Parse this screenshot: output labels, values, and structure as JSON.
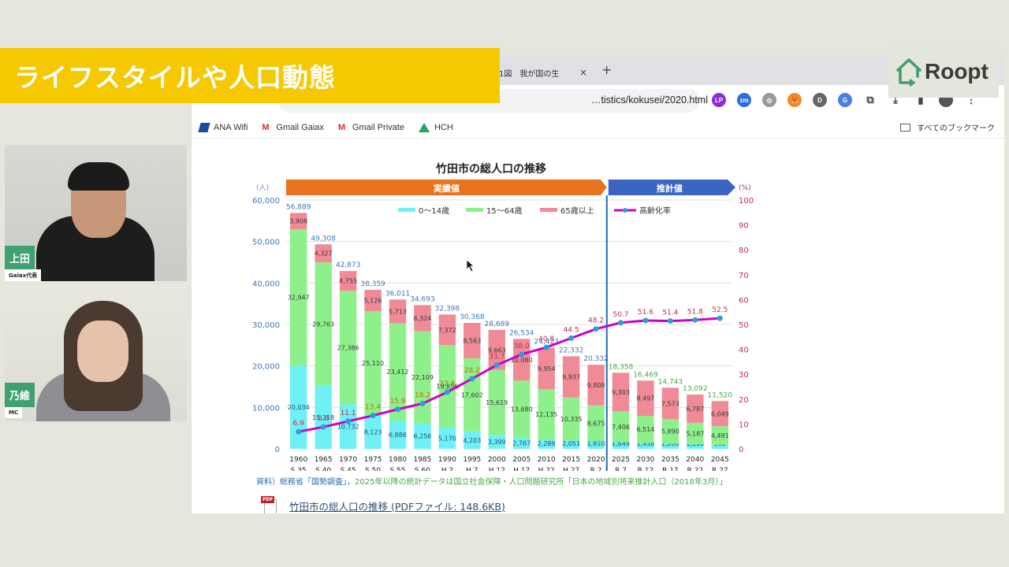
{
  "overlay": {
    "banner_title": "ライフスタイルや人口動態",
    "logo_text": "Roopt"
  },
  "participants": [
    {
      "name": "上田",
      "role": "Gaiax代表"
    },
    {
      "name": "乃維",
      "role": "MC"
    }
  ],
  "browser": {
    "tab_title": "ー1図　我が国の生",
    "tab_close": "×",
    "new_tab": "+",
    "url": "…tistics/kokusei/2020.html",
    "bookmarks": [
      {
        "label": "ANA Wifi",
        "icon": "ana-icon"
      },
      {
        "label": "Gmail Gaiax",
        "icon": "gmail-icon"
      },
      {
        "label": "Gmail Private",
        "icon": "gmail-icon"
      },
      {
        "label": "HCH",
        "icon": "drive-icon"
      }
    ],
    "all_bookmarks": "すべてのブックマーク",
    "extensions": [
      {
        "name": "lastpass-extension",
        "label": "LP",
        "color": "#8a2be2"
      },
      {
        "name": "zoom-extension",
        "label": "zm",
        "color": "#2d6be0"
      },
      {
        "name": "camera-extension",
        "label": "◎",
        "color": "#9a9a9a"
      },
      {
        "name": "metamask-extension",
        "label": "🦊",
        "color": "#f08a24"
      },
      {
        "name": "d-extension",
        "label": "D",
        "color": "#666666"
      },
      {
        "name": "translate-extension",
        "label": "G",
        "color": "#4a7fe0"
      }
    ]
  },
  "page": {
    "source_prefix": "資料）総務省「国勢調査」，",
    "source_suffix": "2025年以降の統計データは国立社会保障・人口問題研究所「日本の地域別将来推計人口（2018年3月）」",
    "pdf_link": "竹田市の総人口の推移 (PDFファイル: 148.6KB)",
    "pdf_badge": "PDF"
  },
  "chart_data": {
    "type": "bar",
    "stacked": true,
    "title": "竹田市の総人口の推移",
    "banner_actual": "実績値",
    "banner_projected": "推計値",
    "ylabel": "(人)",
    "y2label": "(%)",
    "ylim": [
      0,
      60000
    ],
    "yticks": [
      "0",
      "10,000",
      "20,000",
      "30,000",
      "40,000",
      "50,000",
      "60,000"
    ],
    "y2lim": [
      0,
      100
    ],
    "y2ticks": [
      "0",
      "10",
      "20",
      "30",
      "40",
      "50",
      "60",
      "70",
      "80",
      "90",
      "100"
    ],
    "grid": true,
    "legend_position": "top-center",
    "categories": [
      "1960",
      "1965",
      "1970",
      "1975",
      "1980",
      "1985",
      "1990",
      "1995",
      "2000",
      "2005",
      "2010",
      "2015",
      "2020",
      "2025",
      "2030",
      "2035",
      "2040",
      "2045"
    ],
    "era_labels": [
      "S 35",
      "S 40",
      "S 45",
      "S 50",
      "S 55",
      "S 60",
      "H 2",
      "H 7",
      "H 12",
      "H 17",
      "H 22",
      "H 27",
      "R 2",
      "R 7",
      "R 12",
      "R 17",
      "R 22",
      "R 27"
    ],
    "projection_start_index": 13,
    "series": [
      {
        "name": "0〜14歳",
        "color": "#6ff0f5",
        "values": [
          20034,
          15218,
          10732,
          8123,
          6886,
          6256,
          5170,
          4203,
          3399,
          2767,
          2289,
          2051,
          1810,
          1649,
          1458,
          1280,
          1118,
          980
        ]
      },
      {
        "name": "15〜64歳",
        "color": "#8ef08a",
        "values": [
          32947,
          29763,
          27386,
          25110,
          23412,
          22109,
          19856,
          17602,
          15619,
          13680,
          12135,
          10335,
          8675,
          7406,
          6514,
          5890,
          5187,
          4491
        ]
      },
      {
        "name": "65歳以上",
        "color": "#f08a96",
        "values": [
          3908,
          4327,
          4755,
          5126,
          5713,
          6324,
          7372,
          8563,
          9663,
          10080,
          9954,
          9937,
          9808,
          9303,
          8497,
          7573,
          6787,
          6049
        ]
      }
    ],
    "totals": [
      56889,
      49308,
      42873,
      38359,
      36011,
      34693,
      32398,
      30368,
      28689,
      26534,
      24423,
      22332,
      20332,
      18358,
      16469,
      14743,
      13092,
      11520
    ],
    "line_series": {
      "name": "高齢化率",
      "color": "#cc00cc",
      "marker_color": "#2aa0d8",
      "values": [
        6.9,
        8.8,
        11.1,
        13.4,
        15.9,
        18.2,
        22.8,
        28.2,
        33.7,
        38.0,
        40.8,
        44.5,
        48.2,
        50.7,
        51.6,
        51.4,
        51.8,
        52.5
      ]
    }
  }
}
